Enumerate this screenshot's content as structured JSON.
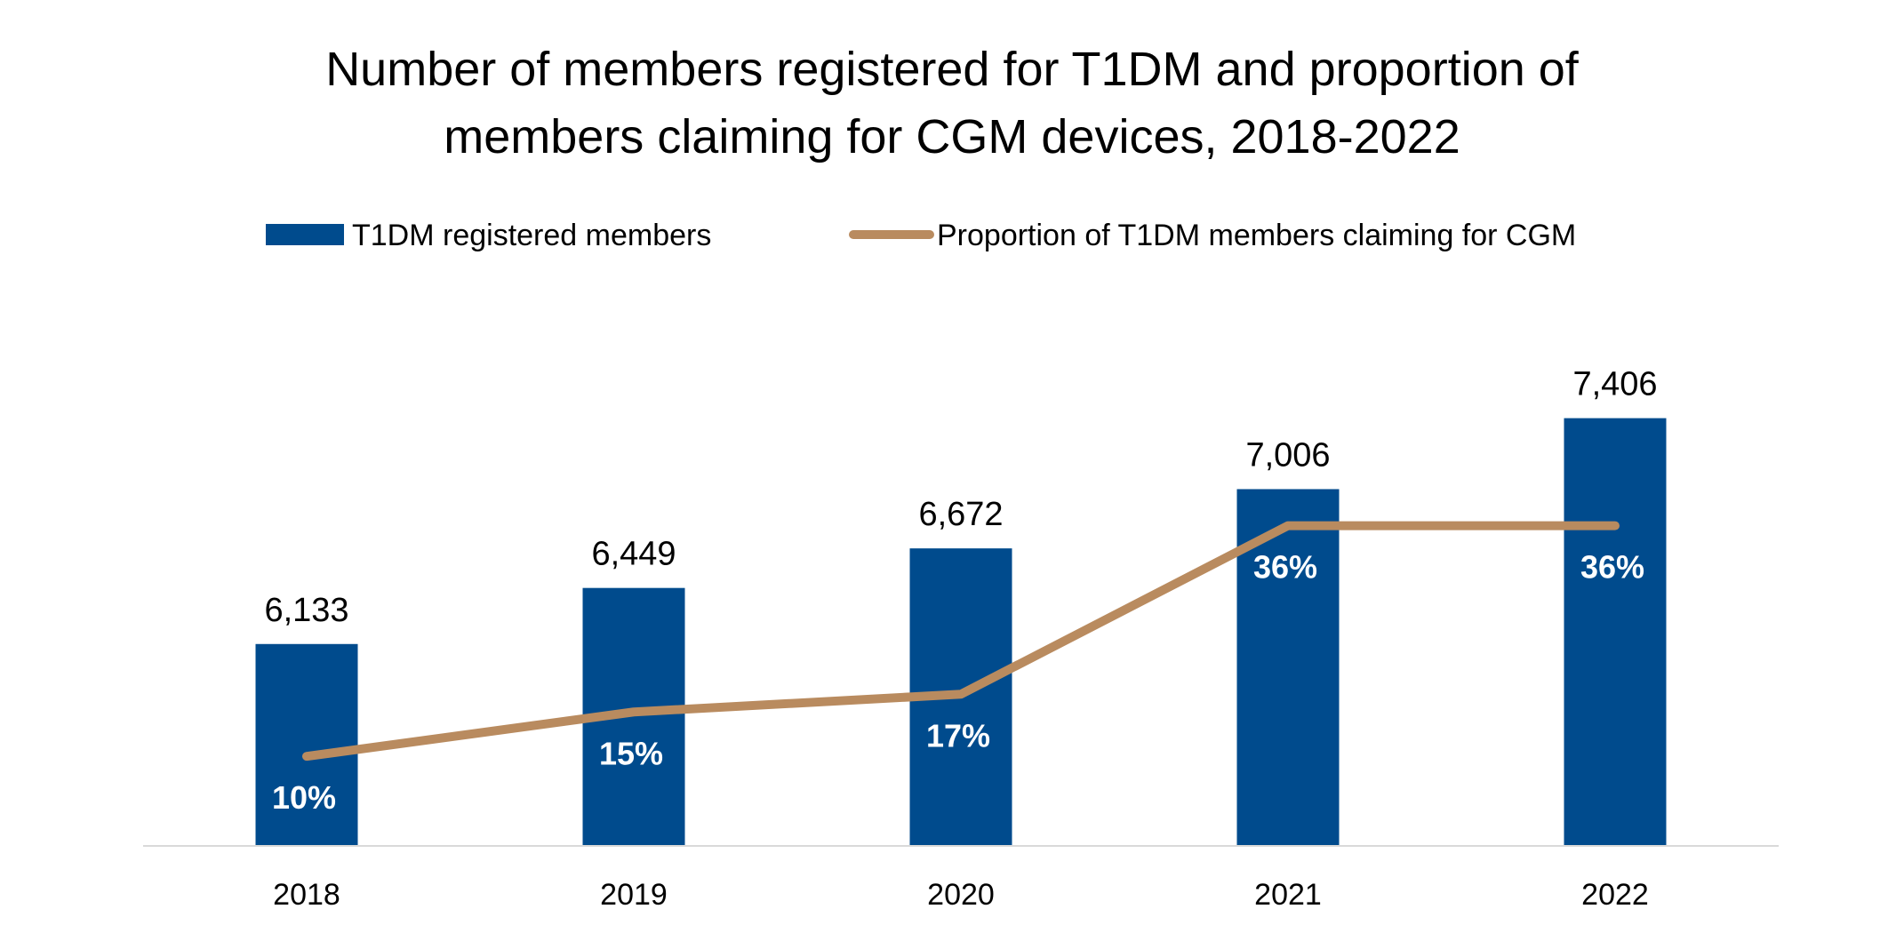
{
  "chart_data": {
    "type": "bar",
    "combo": "bar + line (secondary axis)",
    "title": "Number of members registered for T1DM and proportion of members claiming for CGM devices, 2018-2022",
    "title_lines": [
      "Number of members registered for T1DM and proportion of",
      "members claiming for CGM devices, 2018-2022"
    ],
    "xlabel": "",
    "ylabel": "",
    "categories": [
      "2018",
      "2019",
      "2020",
      "2021",
      "2022"
    ],
    "series": [
      {
        "name": "T1DM registered members",
        "type": "bar",
        "axis": "primary",
        "color": "#004B8D",
        "values": [
          6133,
          6449,
          6672,
          7006,
          7406
        ],
        "labels": [
          "6,133",
          "6,449",
          "6,672",
          "7,006",
          "7,406"
        ]
      },
      {
        "name": "Proportion of T1DM members claiming for CGM",
        "type": "line",
        "axis": "secondary",
        "color": "#B98B5F",
        "values": [
          0.1,
          0.15,
          0.17,
          0.36,
          0.36
        ],
        "labels": [
          "10%",
          "15%",
          "17%",
          "36%",
          "36%"
        ]
      }
    ],
    "ylim": [
      5000,
      8000
    ],
    "y2lim": [
      0,
      0.6
    ],
    "y_axis_visible": false,
    "grid": false,
    "legend": "top-center",
    "axis_line_color": "#D9D9D9"
  }
}
